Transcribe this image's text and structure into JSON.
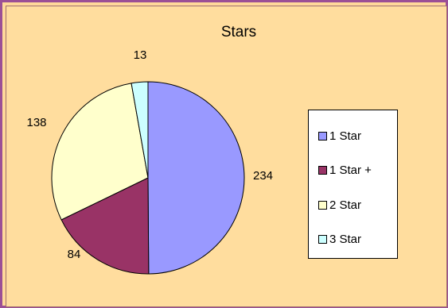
{
  "chart_data": {
    "type": "pie",
    "title": "Stars",
    "categories": [
      "1 Star",
      "1 Star +",
      "2 Star",
      "3 Star"
    ],
    "values": [
      234,
      84,
      138,
      13
    ],
    "colors": [
      "#9999ff",
      "#993366",
      "#ffffcc",
      "#ccffff"
    ],
    "legend_position": "right",
    "data_labels": [
      "234",
      "84",
      "138",
      "13"
    ]
  },
  "colors": {
    "frame_border": "#9b4f96",
    "background": "#ffdd9e"
  }
}
